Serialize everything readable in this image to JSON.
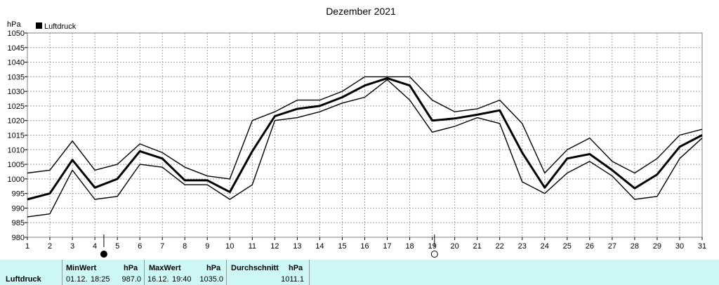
{
  "chart_data": {
    "type": "line",
    "title": "Dezember 2021",
    "ylabel": "hPa",
    "xlabel": "",
    "ylim": [
      980,
      1050
    ],
    "y_ticks": [
      980,
      985,
      990,
      995,
      1000,
      1005,
      1010,
      1015,
      1020,
      1025,
      1030,
      1035,
      1040,
      1045,
      1050
    ],
    "x": [
      1,
      2,
      3,
      4,
      5,
      6,
      7,
      8,
      9,
      10,
      11,
      12,
      13,
      14,
      15,
      16,
      17,
      18,
      19,
      20,
      21,
      22,
      23,
      24,
      25,
      26,
      27,
      28,
      29,
      30,
      31
    ],
    "grid": true,
    "legend": {
      "position": "top-left",
      "entries": [
        "Luftdruck"
      ]
    },
    "series": [
      {
        "name": "Luftdruck",
        "role": "max",
        "values": [
          1002,
          1003,
          1013,
          1003,
          1005,
          1012,
          1009,
          1004,
          1001,
          1000,
          1020,
          1023,
          1027,
          1027,
          1030,
          1035,
          1035,
          1035,
          1027,
          1023,
          1024,
          1027,
          1019,
          1002,
          1010,
          1014,
          1006,
          1002,
          1007,
          1015,
          1017
        ]
      },
      {
        "name": "Luftdruck",
        "role": "avg",
        "values": [
          993,
          995,
          1006.5,
          997,
          1000,
          1009.5,
          1007,
          999.5,
          999.5,
          995.5,
          1009.5,
          1021.5,
          1024,
          1025,
          1028,
          1032,
          1034.5,
          1032,
          1020,
          1020.7,
          1022,
          1023.5,
          1009,
          997,
          1007,
          1008.5,
          1003,
          996.8,
          1001.5,
          1011,
          1015
        ]
      },
      {
        "name": "Luftdruck",
        "role": "min",
        "values": [
          987,
          988,
          1003,
          993,
          994,
          1005,
          1004,
          998,
          998,
          993,
          998,
          1020,
          1021,
          1023,
          1026,
          1028,
          1034,
          1027,
          1016,
          1018,
          1021,
          1019,
          999,
          995,
          1002,
          1006,
          1001,
          993,
          994,
          1007,
          1014
        ]
      }
    ],
    "annotations": [
      {
        "type": "full-moon-symbol",
        "x": 4.4
      },
      {
        "type": "new-moon-symbol",
        "x": 19.1
      }
    ]
  },
  "stats_panel": {
    "row_label": "Luftdruck",
    "min": {
      "header": "MinWert",
      "unit": "hPa",
      "date": "01.12.",
      "time": "18:25",
      "value": "987.0"
    },
    "max": {
      "header": "MaxWert",
      "unit": "hPa",
      "date": "16.12.",
      "time": "19:40",
      "value": "1035.0"
    },
    "avg": {
      "header": "Durchschnitt",
      "unit": "hPa",
      "value": "1011.1"
    }
  }
}
